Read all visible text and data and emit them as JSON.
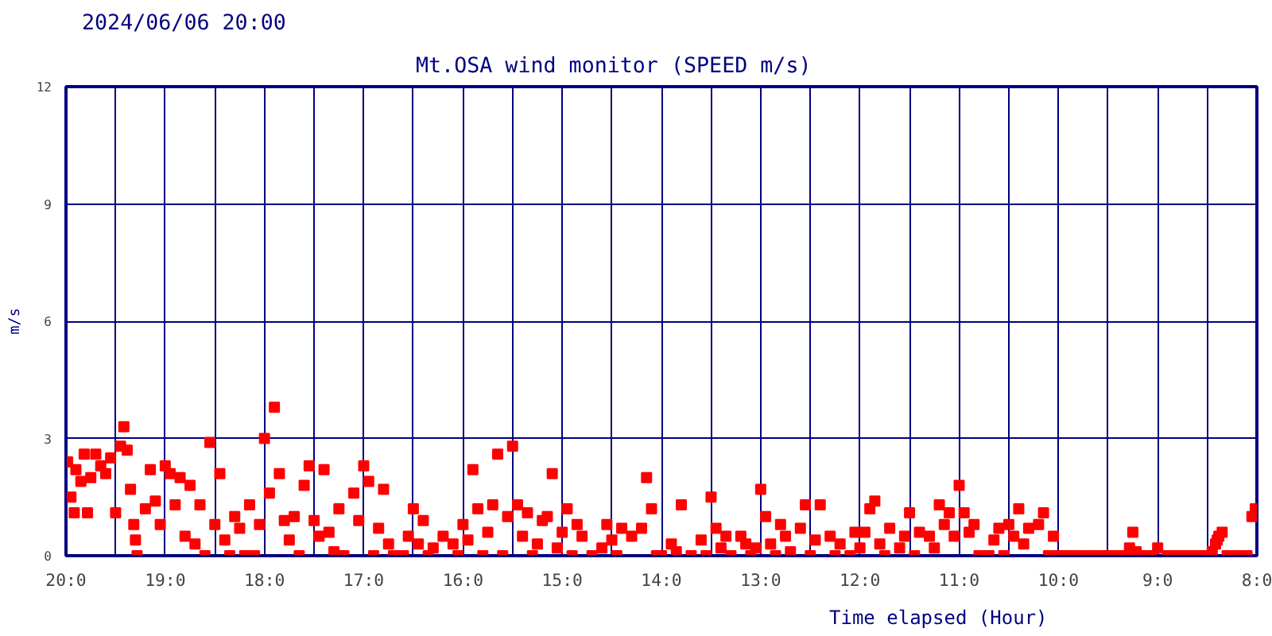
{
  "chart_data": {
    "type": "scatter",
    "title": "Mt.OSA wind monitor (SPEED m/s)",
    "subtitle": "2024/06/06 20:00",
    "xlabel": "Time elapsed (Hour)",
    "ylabel": "m/s",
    "xlim": [
      "2024-06-06T20:00",
      "2024-06-06T08:00"
    ],
    "ylim": [
      0,
      12
    ],
    "xticks": [
      {
        "value": "2024-06-06T20:00",
        "label": "20:0"
      },
      {
        "value": "2024-06-06T19:30",
        "label": null
      },
      {
        "value": "2024-06-06T19:00",
        "label": "19:0"
      },
      {
        "value": "2024-06-06T18:30",
        "label": null
      },
      {
        "value": "2024-06-06T18:00",
        "label": "18:0"
      },
      {
        "value": "2024-06-06T17:30",
        "label": null
      },
      {
        "value": "2024-06-06T17:00",
        "label": "17:0"
      },
      {
        "value": "2024-06-06T16:30",
        "label": null
      },
      {
        "value": "2024-06-06T16:00",
        "label": "16:0"
      },
      {
        "value": "2024-06-06T15:30",
        "label": null
      },
      {
        "value": "2024-06-06T15:00",
        "label": "15:0"
      },
      {
        "value": "2024-06-06T14:30",
        "label": null
      },
      {
        "value": "2024-06-06T14:00",
        "label": "14:0"
      },
      {
        "value": "2024-06-06T13:30",
        "label": null
      },
      {
        "value": "2024-06-06T13:00",
        "label": "13:0"
      },
      {
        "value": "2024-06-06T12:30",
        "label": null
      },
      {
        "value": "2024-06-06T12:00",
        "label": "12:0"
      },
      {
        "value": "2024-06-06T11:30",
        "label": null
      },
      {
        "value": "2024-06-06T11:00",
        "label": "11:0"
      },
      {
        "value": "2024-06-06T10:30",
        "label": null
      },
      {
        "value": "2024-06-06T10:00",
        "label": "10:0"
      },
      {
        "value": "2024-06-06T09:30",
        "label": null
      },
      {
        "value": "2024-06-06T09:00",
        "label": "9:0"
      },
      {
        "value": "2024-06-06T08:30",
        "label": null
      },
      {
        "value": "2024-06-06T08:00",
        "label": "8:0"
      }
    ],
    "yticks": [
      0,
      3,
      6,
      9,
      12
    ],
    "grid": true,
    "marker": "square",
    "legend": false,
    "x": [
      "2024-06-06T19:59",
      "2024-06-06T19:57",
      "2024-06-06T19:55",
      "2024-06-06T19:54",
      "2024-06-06T19:51",
      "2024-06-06T19:49",
      "2024-06-06T19:47",
      "2024-06-06T19:45",
      "2024-06-06T19:42",
      "2024-06-06T19:39",
      "2024-06-06T19:36",
      "2024-06-06T19:33",
      "2024-06-06T19:30",
      "2024-06-06T19:27",
      "2024-06-06T19:25",
      "2024-06-06T19:23",
      "2024-06-06T19:21",
      "2024-06-06T19:19",
      "2024-06-06T19:18",
      "2024-06-06T19:17",
      "2024-06-06T19:12",
      "2024-06-06T19:09",
      "2024-06-06T19:06",
      "2024-06-06T19:03",
      "2024-06-06T19:00",
      "2024-06-06T18:57",
      "2024-06-06T18:54",
      "2024-06-06T18:51",
      "2024-06-06T18:48",
      "2024-06-06T18:45",
      "2024-06-06T18:42",
      "2024-06-06T18:39",
      "2024-06-06T18:36",
      "2024-06-06T18:33",
      "2024-06-06T18:30",
      "2024-06-06T18:27",
      "2024-06-06T18:24",
      "2024-06-06T18:21",
      "2024-06-06T18:18",
      "2024-06-06T18:15",
      "2024-06-06T18:12",
      "2024-06-06T18:09",
      "2024-06-06T18:06",
      "2024-06-06T18:03",
      "2024-06-06T18:00",
      "2024-06-06T17:57",
      "2024-06-06T17:54",
      "2024-06-06T17:51",
      "2024-06-06T17:48",
      "2024-06-06T17:45",
      "2024-06-06T17:42",
      "2024-06-06T17:39",
      "2024-06-06T17:36",
      "2024-06-06T17:33",
      "2024-06-06T17:30",
      "2024-06-06T17:27",
      "2024-06-06T17:24",
      "2024-06-06T17:21",
      "2024-06-06T17:18",
      "2024-06-06T17:15",
      "2024-06-06T17:12",
      "2024-06-06T17:06",
      "2024-06-06T17:03",
      "2024-06-06T17:00",
      "2024-06-06T16:57",
      "2024-06-06T16:54",
      "2024-06-06T16:51",
      "2024-06-06T16:48",
      "2024-06-06T16:45",
      "2024-06-06T16:42",
      "2024-06-06T16:36",
      "2024-06-06T16:33",
      "2024-06-06T16:30",
      "2024-06-06T16:27",
      "2024-06-06T16:24",
      "2024-06-06T16:21",
      "2024-06-06T16:18",
      "2024-06-06T16:12",
      "2024-06-06T16:06",
      "2024-06-06T16:03",
      "2024-06-06T16:00",
      "2024-06-06T15:57",
      "2024-06-06T15:54",
      "2024-06-06T15:51",
      "2024-06-06T15:48",
      "2024-06-06T15:45",
      "2024-06-06T15:42",
      "2024-06-06T15:39",
      "2024-06-06T15:36",
      "2024-06-06T15:33",
      "2024-06-06T15:30",
      "2024-06-06T15:27",
      "2024-06-06T15:24",
      "2024-06-06T15:21",
      "2024-06-06T15:18",
      "2024-06-06T15:15",
      "2024-06-06T15:12",
      "2024-06-06T15:09",
      "2024-06-06T15:06",
      "2024-06-06T15:03",
      "2024-06-06T15:00",
      "2024-06-06T14:57",
      "2024-06-06T14:54",
      "2024-06-06T14:51",
      "2024-06-06T14:48",
      "2024-06-06T14:42",
      "2024-06-06T14:36",
      "2024-06-06T14:33",
      "2024-06-06T14:30",
      "2024-06-06T14:27",
      "2024-06-06T14:24",
      "2024-06-06T14:18",
      "2024-06-06T14:12",
      "2024-06-06T14:09",
      "2024-06-06T14:06",
      "2024-06-06T14:03",
      "2024-06-06T14:00",
      "2024-06-06T13:54",
      "2024-06-06T13:51",
      "2024-06-06T13:48",
      "2024-06-06T13:42",
      "2024-06-06T13:36",
      "2024-06-06T13:33",
      "2024-06-06T13:30",
      "2024-06-06T13:27",
      "2024-06-06T13:24",
      "2024-06-06T13:21",
      "2024-06-06T13:18",
      "2024-06-06T13:12",
      "2024-06-06T13:09",
      "2024-06-06T13:06",
      "2024-06-06T13:03",
      "2024-06-06T13:00",
      "2024-06-06T12:57",
      "2024-06-06T12:54",
      "2024-06-06T12:51",
      "2024-06-06T12:48",
      "2024-06-06T12:45",
      "2024-06-06T12:42",
      "2024-06-06T12:36",
      "2024-06-06T12:33",
      "2024-06-06T12:30",
      "2024-06-06T12:27",
      "2024-06-06T12:24",
      "2024-06-06T12:18",
      "2024-06-06T12:15",
      "2024-06-06T12:12",
      "2024-06-06T12:06",
      "2024-06-06T12:03",
      "2024-06-06T12:00",
      "2024-06-06T11:57",
      "2024-06-06T11:54",
      "2024-06-06T11:51",
      "2024-06-06T11:48",
      "2024-06-06T11:45",
      "2024-06-06T11:42",
      "2024-06-06T11:36",
      "2024-06-06T11:33",
      "2024-06-06T11:30",
      "2024-06-06T11:27",
      "2024-06-06T11:24",
      "2024-06-06T11:18",
      "2024-06-06T11:15",
      "2024-06-06T11:12",
      "2024-06-06T11:09",
      "2024-06-06T11:06",
      "2024-06-06T11:03",
      "2024-06-06T11:00",
      "2024-06-06T10:57",
      "2024-06-06T10:54",
      "2024-06-06T10:51",
      "2024-06-06T10:48",
      "2024-06-06T10:42",
      "2024-06-06T10:39",
      "2024-06-06T10:36",
      "2024-06-06T10:33",
      "2024-06-06T10:30",
      "2024-06-06T10:27",
      "2024-06-06T10:24",
      "2024-06-06T10:21",
      "2024-06-06T10:18",
      "2024-06-06T10:12",
      "2024-06-06T10:09",
      "2024-06-06T10:06",
      "2024-06-06T10:03",
      "2024-06-06T10:00",
      "2024-06-06T09:54",
      "2024-06-06T09:48",
      "2024-06-06T09:42",
      "2024-06-06T09:36",
      "2024-06-06T09:30",
      "2024-06-06T09:24",
      "2024-06-06T09:18",
      "2024-06-06T09:17",
      "2024-06-06T09:15",
      "2024-06-06T09:13",
      "2024-06-06T09:09",
      "2024-06-06T09:03",
      "2024-06-06T09:00",
      "2024-06-06T08:54",
      "2024-06-06T08:48",
      "2024-06-06T08:42",
      "2024-06-06T08:36",
      "2024-06-06T08:30",
      "2024-06-06T08:27",
      "2024-06-06T08:25",
      "2024-06-06T08:24",
      "2024-06-06T08:23",
      "2024-06-06T08:21",
      "2024-06-06T08:18",
      "2024-06-06T08:12",
      "2024-06-06T08:06",
      "2024-06-06T08:03",
      "2024-06-06T08:01"
    ],
    "values": [
      2.4,
      1.5,
      1.1,
      2.2,
      1.9,
      2.6,
      1.1,
      2.0,
      2.6,
      2.3,
      2.1,
      2.5,
      1.1,
      2.8,
      3.3,
      2.7,
      1.7,
      0.8,
      0.4,
      0.0,
      1.2,
      2.2,
      1.4,
      0.8,
      2.3,
      2.1,
      1.3,
      2.0,
      0.5,
      1.8,
      0.3,
      1.3,
      0.0,
      2.9,
      0.8,
      2.1,
      0.4,
      0.0,
      1.0,
      0.7,
      0.0,
      1.3,
      0.0,
      0.8,
      3.0,
      1.6,
      3.8,
      2.1,
      0.9,
      0.4,
      1.0,
      0.0,
      1.8,
      2.3,
      0.9,
      0.5,
      2.2,
      0.6,
      0.1,
      1.2,
      0.0,
      1.6,
      0.9,
      2.3,
      1.9,
      0.0,
      0.7,
      1.7,
      0.3,
      0.0,
      0.0,
      0.5,
      1.2,
      0.3,
      0.9,
      0.0,
      0.2,
      0.5,
      0.3,
      0.0,
      0.8,
      0.4,
      2.2,
      1.2,
      0.0,
      0.6,
      1.3,
      2.6,
      0.0,
      1.0,
      2.8,
      1.3,
      0.5,
      1.1,
      0.0,
      0.3,
      0.9,
      1.0,
      2.1,
      0.2,
      0.6,
      1.2,
      0.0,
      0.8,
      0.5,
      0.0,
      0.2,
      0.8,
      0.4,
      0.0,
      0.7,
      0.5,
      0.7,
      2.0,
      1.2,
      0.0,
      0.0,
      0.3,
      0.1,
      1.3,
      0.0,
      0.4,
      0.0,
      1.5,
      0.7,
      0.2,
      0.5,
      0.0,
      0.5,
      0.3,
      0.0,
      0.2,
      1.7,
      1.0,
      0.3,
      0.0,
      0.8,
      0.5,
      0.1,
      0.7,
      1.3,
      0.0,
      0.4,
      1.3,
      0.5,
      0.0,
      0.3,
      0.0,
      0.6,
      0.2,
      0.6,
      1.2,
      1.4,
      0.3,
      0.0,
      0.7,
      0.2,
      0.5,
      1.1,
      0.0,
      0.6,
      0.5,
      0.2,
      1.3,
      0.8,
      1.1,
      0.5,
      1.8,
      1.1,
      0.6,
      0.8,
      0.0,
      0.0,
      0.4,
      0.7,
      0.0,
      0.8,
      0.5,
      1.2,
      0.3,
      0.7,
      0.8,
      1.1,
      0.0,
      0.5,
      0.0,
      0.0,
      0.0,
      0.0,
      0.0,
      0.0,
      0.0,
      0.0,
      0.2,
      0.6,
      0.1,
      0.0,
      0.0,
      0.2,
      0.0,
      0.0,
      0.0,
      0.0,
      0.0,
      0.1,
      0.3,
      0.4,
      0.5,
      0.6,
      0.0,
      0.0,
      0.0,
      1.0,
      1.2
    ],
    "color": "#ff0000"
  }
}
